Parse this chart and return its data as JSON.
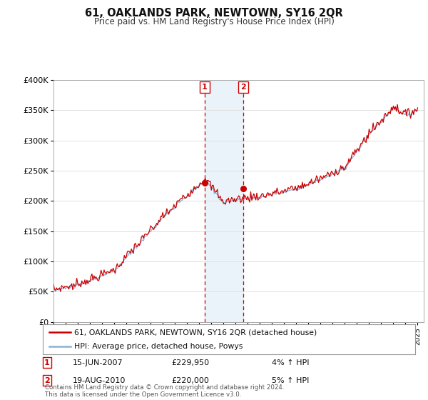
{
  "title": "61, OAKLANDS PARK, NEWTOWN, SY16 2QR",
  "subtitle": "Price paid vs. HM Land Registry's House Price Index (HPI)",
  "ylabel_ticks": [
    "£0",
    "£50K",
    "£100K",
    "£150K",
    "£200K",
    "£250K",
    "£300K",
    "£350K",
    "£400K"
  ],
  "ylim": [
    0,
    400000
  ],
  "ytick_vals": [
    0,
    50000,
    100000,
    150000,
    200000,
    250000,
    300000,
    350000,
    400000
  ],
  "x_start_year": 1995,
  "x_end_year": 2025,
  "sale1_date": "15-JUN-2007",
  "sale1_price": 229950,
  "sale1_price_str": "£229,950",
  "sale1_hpi_pct": "4% ↑ HPI",
  "sale2_date": "19-AUG-2010",
  "sale2_price": 220000,
  "sale2_price_str": "£220,000",
  "sale2_hpi_pct": "5% ↑ HPI",
  "legend_line1": "61, OAKLANDS PARK, NEWTOWN, SY16 2QR (detached house)",
  "legend_line2": "HPI: Average price, detached house, Powys",
  "footer": "Contains HM Land Registry data © Crown copyright and database right 2024.\nThis data is licensed under the Open Government Licence v3.0.",
  "hpi_color": "#8ab4d4",
  "price_color": "#cc0000",
  "sale_marker_color": "#cc0000",
  "shade_color": "#daeaf5",
  "background_color": "#ffffff",
  "grid_color": "#e0e0e0"
}
